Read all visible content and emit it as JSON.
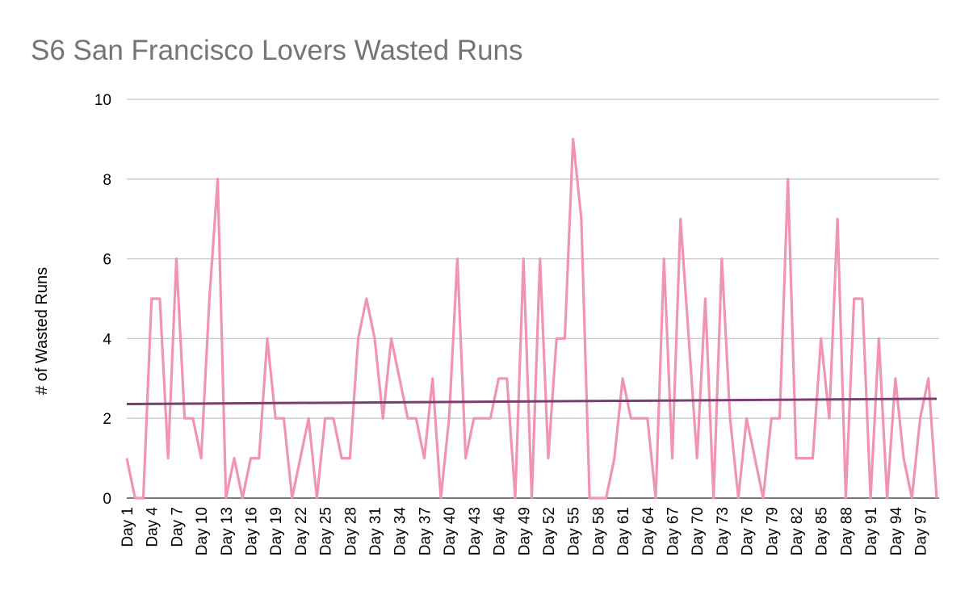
{
  "chart_data": {
    "type": "line",
    "title": "S6 San Francisco Lovers Wasted Runs",
    "y_label": "# of Wasted Runs",
    "categories": [
      "Day 1",
      null,
      null,
      "Day 4",
      null,
      null,
      "Day 7",
      null,
      null,
      "Day 10",
      null,
      null,
      "Day 13",
      null,
      null,
      "Day 16",
      null,
      null,
      "Day 19",
      null,
      null,
      "Day 22",
      null,
      null,
      "Day 25",
      null,
      null,
      "Day 28",
      null,
      null,
      "Day 31",
      null,
      null,
      "Day 34",
      null,
      null,
      "Day 37",
      null,
      null,
      "Day 40",
      null,
      null,
      "Day 43",
      null,
      null,
      "Day 46",
      null,
      null,
      "Day 49",
      null,
      null,
      "Day 52",
      null,
      null,
      "Day 55",
      null,
      null,
      "Day 58",
      null,
      null,
      "Day 61",
      null,
      null,
      "Day 64",
      null,
      null,
      "Day 67",
      null,
      null,
      "Day 70",
      null,
      null,
      "Day 73",
      null,
      null,
      "Day 76",
      null,
      null,
      "Day 79",
      null,
      null,
      "Day 82",
      null,
      null,
      "Day 85",
      null,
      null,
      "Day 88",
      null,
      null,
      "Day 91",
      null,
      null,
      "Day 94",
      null,
      null,
      "Day 97",
      null,
      null
    ],
    "series": [
      {
        "name": "Wasted Runs",
        "color": "#f094b4",
        "values": [
          1,
          0,
          0,
          5,
          5,
          1,
          6,
          2,
          2,
          1,
          5,
          8,
          0,
          1,
          0,
          1,
          1,
          4,
          2,
          2,
          0,
          1,
          2,
          0,
          2,
          2,
          1,
          1,
          4,
          5,
          4,
          2,
          4,
          3,
          2,
          2,
          1,
          3,
          0,
          2,
          6,
          1,
          2,
          2,
          2,
          3,
          3,
          0,
          6,
          0,
          6,
          1,
          4,
          4,
          9,
          7,
          0,
          0,
          0,
          1,
          3,
          2,
          2,
          2,
          0,
          6,
          1,
          7,
          4,
          1,
          5,
          0,
          6,
          2,
          0,
          2,
          1,
          0,
          2,
          2,
          8,
          1,
          1,
          1,
          4,
          2,
          7,
          0,
          5,
          5,
          0,
          4,
          0,
          3,
          1,
          0,
          2,
          3,
          0
        ]
      }
    ],
    "trendline": {
      "type": "linear",
      "color": "#7b3f6e"
    },
    "ylim": [
      0,
      10
    ],
    "yticks": [
      0,
      2,
      4,
      6,
      8,
      10
    ],
    "grid": true
  }
}
